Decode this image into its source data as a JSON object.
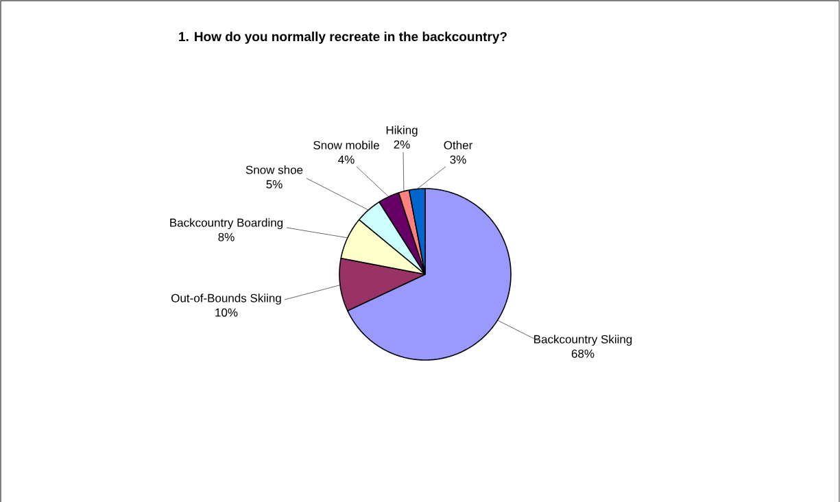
{
  "chart_data": {
    "type": "pie",
    "title": "1. How do you normally recreate in the backcountry?",
    "categories": [
      "Backcountry Skiing",
      "Out-of-Bounds Skiing",
      "Backcountry Boarding",
      "Snow shoe",
      "Snow mobile",
      "Hiking",
      "Other"
    ],
    "values": [
      68,
      10,
      8,
      5,
      4,
      2,
      3
    ],
    "value_labels": [
      "68%",
      "10%",
      "8%",
      "5%",
      "4%",
      "2%",
      "3%"
    ],
    "colors": [
      "#9999ff",
      "#993366",
      "#ffffcc",
      "#ccffff",
      "#660066",
      "#ff8080",
      "#0066cc"
    ]
  }
}
